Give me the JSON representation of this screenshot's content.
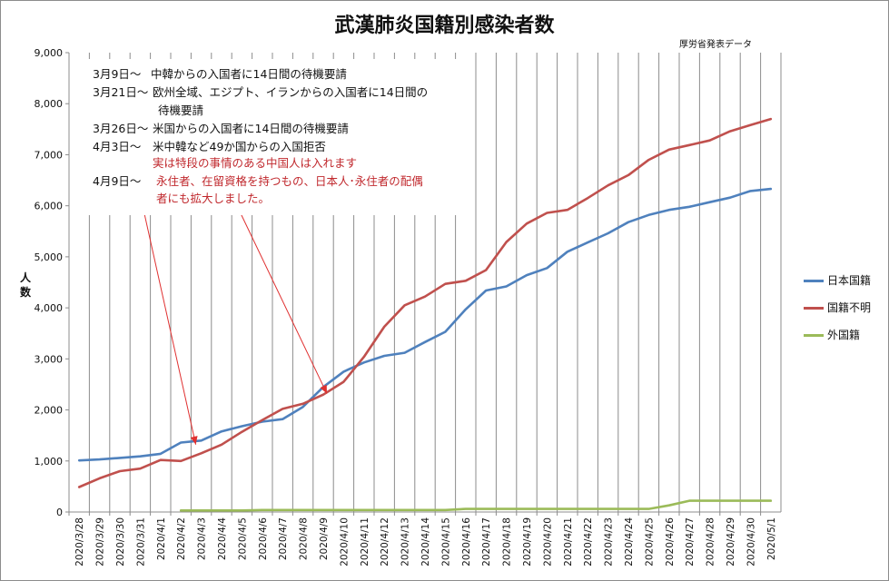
{
  "chart_data": {
    "type": "line",
    "title": "武漢肺炎国籍別感染者数",
    "source_note": "厚労省発表データ",
    "ylabel": "人数",
    "xlabel": "",
    "ylim": [
      0,
      9000
    ],
    "yticks": [
      0,
      1000,
      2000,
      3000,
      4000,
      5000,
      6000,
      7000,
      8000,
      9000
    ],
    "ytick_labels": [
      "0",
      "1,000",
      "2,000",
      "3,000",
      "4,000",
      "5,000",
      "6,000",
      "7,000",
      "8,000",
      "9,000"
    ],
    "grid": "vertical",
    "legend_position": "right",
    "categories": [
      "2020/3/28",
      "2020/3/29",
      "2020/3/30",
      "2020/3/31",
      "2020/4/1",
      "2020/4/2",
      "2020/4/3",
      "2020/4/4",
      "2020/4/5",
      "2020/4/6",
      "2020/4/7",
      "2020/4/8",
      "2020/4/9",
      "2020/4/10",
      "2020/4/11",
      "2020/4/12",
      "2020/4/13",
      "2020/4/14",
      "2020/4/15",
      "2020/4/16",
      "2020/4/17",
      "2020/4/18",
      "2020/4/19",
      "2020/4/20",
      "2020/4/21",
      "2020/4/22",
      "2020/4/23",
      "2020/4/24",
      "2020/4/25",
      "2020/4/26",
      "2020/4/27",
      "2020/4/28",
      "2020/4/29",
      "2020/4/30",
      "2020/5/1"
    ],
    "series": [
      {
        "name": "日本国籍",
        "color": "#4f81bd",
        "values": [
          1010,
          1030,
          1060,
          1090,
          1140,
          1360,
          1400,
          1580,
          1680,
          1770,
          1820,
          2060,
          2450,
          2750,
          2930,
          3060,
          3120,
          3330,
          3530,
          3970,
          4340,
          4420,
          4640,
          4780,
          5100,
          5280,
          5460,
          5680,
          5820,
          5920,
          5980,
          6070,
          6160,
          6290,
          6330
        ]
      },
      {
        "name": "国籍不明",
        "color": "#c0504d",
        "values": [
          490,
          660,
          800,
          850,
          1020,
          1000,
          1150,
          1320,
          1570,
          1800,
          2020,
          2120,
          2300,
          2550,
          3040,
          3630,
          4050,
          4220,
          4470,
          4530,
          4740,
          5290,
          5650,
          5860,
          5920,
          6150,
          6400,
          6600,
          6900,
          7100,
          7190,
          7280,
          7460,
          7580,
          7700
        ]
      },
      {
        "name": "外国籍",
        "color": "#9bbb59",
        "values": [
          null,
          null,
          null,
          null,
          null,
          30,
          30,
          30,
          30,
          40,
          40,
          40,
          40,
          40,
          40,
          40,
          40,
          40,
          40,
          60,
          60,
          60,
          60,
          60,
          60,
          60,
          60,
          60,
          60,
          130,
          220,
          220,
          220,
          220,
          220
        ]
      }
    ],
    "annotations": [
      {
        "label": "3月9日～",
        "text": "中韓からの入国者に14日間の待機要請"
      },
      {
        "label": "3月21日～",
        "text": "欧州全域、エジプト、イランからの入国者に14日間の",
        "continuation": "待機要請"
      },
      {
        "label": "3月26日～",
        "text": "米国からの入国者に14日間の待機要請"
      },
      {
        "label": "4月3日～",
        "text": "米中韓など49か国からの入国拒否",
        "note": "実は特段の事情のある中国人は入れます"
      },
      {
        "label": "4月9日～",
        "text": "永住者、在留資格を持つもの、日本人･永住者の配偶",
        "continuation": "者にも拡大しました。"
      }
    ],
    "arrow_color": "#e03030"
  }
}
